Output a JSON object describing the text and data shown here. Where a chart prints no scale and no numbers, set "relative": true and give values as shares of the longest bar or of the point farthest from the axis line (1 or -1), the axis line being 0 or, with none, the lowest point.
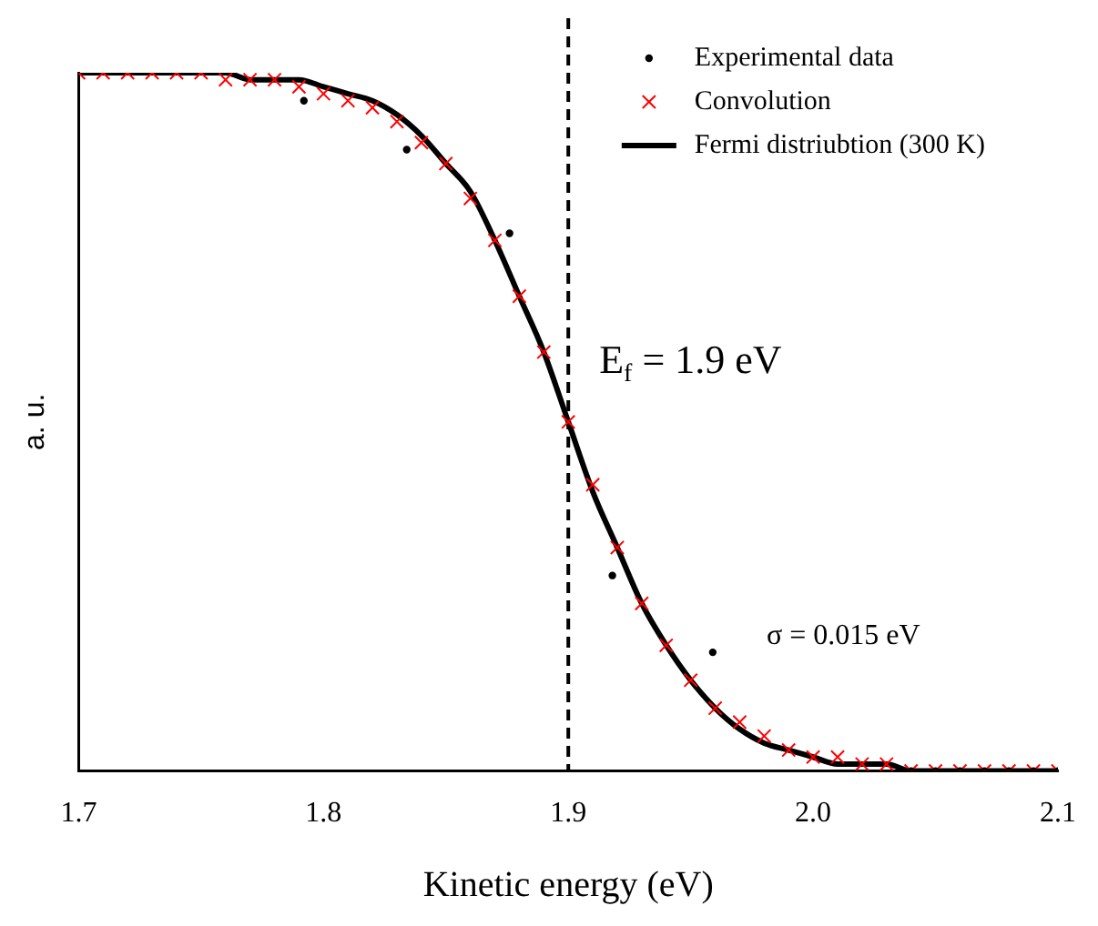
{
  "chart_data": {
    "type": "line",
    "relative": true,
    "xlabel": "Kinetic energy (eV)",
    "ylabel": "a. u.",
    "xlim": [
      1.7,
      2.1
    ],
    "xticks": [
      1.7,
      1.8,
      1.9,
      {
        "value": 2,
        "label": "2.0"
      },
      2.1
    ],
    "tick_labels": "x",
    "grid": false,
    "legend": "top right",
    "series": [
      {
        "name": "Experimental data",
        "type": "scatter",
        "marker": "circle",
        "color": "#000000",
        "x": [
          1.792,
          1.834,
          1.876,
          1.918,
          1.959,
          2.04,
          2.05,
          2.06,
          2.07,
          2.08,
          2.09,
          2.1
        ],
        "values": [
          0.96,
          0.89,
          0.77,
          0.28,
          0.17,
          0.0,
          0.0,
          0.0,
          0.0,
          0.0,
          0.0,
          0.0
        ]
      },
      {
        "name": "Convolution",
        "type": "scatter",
        "marker": "cross",
        "color": "#ff0000",
        "x": [
          1.7,
          1.71,
          1.72,
          1.73,
          1.74,
          1.75,
          1.76,
          1.77,
          1.78,
          1.79,
          1.8,
          1.81,
          1.82,
          1.83,
          1.84,
          1.85,
          1.86,
          1.87,
          1.88,
          1.89,
          1.9,
          1.91,
          1.92,
          1.93,
          1.94,
          1.95,
          1.96,
          1.97,
          1.98,
          1.99,
          2.0,
          2.01,
          2.02,
          2.03,
          2.04,
          2.05,
          2.06,
          2.07,
          2.08,
          2.09,
          2.1
        ],
        "values": [
          1.0,
          1.0,
          1.0,
          1.0,
          1.0,
          1.0,
          0.99,
          0.99,
          0.99,
          0.98,
          0.97,
          0.96,
          0.95,
          0.93,
          0.9,
          0.87,
          0.82,
          0.76,
          0.68,
          0.6,
          0.5,
          0.41,
          0.32,
          0.24,
          0.18,
          0.13,
          0.09,
          0.07,
          0.05,
          0.03,
          0.02,
          0.02,
          0.01,
          0.01,
          0.0,
          0.0,
          0.0,
          0.0,
          0.0,
          0.0,
          0.0
        ]
      },
      {
        "name": "Fermi distriubtion (300 K)",
        "marker": "none",
        "line_style": "solid",
        "color": "#000000",
        "x": [
          1.7,
          1.71,
          1.72,
          1.73,
          1.74,
          1.75,
          1.76,
          1.77,
          1.78,
          1.79,
          1.8,
          1.81,
          1.82,
          1.83,
          1.84,
          1.85,
          1.86,
          1.87,
          1.88,
          1.89,
          1.9,
          1.91,
          1.92,
          1.93,
          1.94,
          1.95,
          1.96,
          1.97,
          1.98,
          1.99,
          2.0,
          2.01,
          2.02,
          2.03,
          2.04,
          2.05,
          2.06,
          2.07,
          2.08,
          2.09,
          2.1
        ],
        "values": [
          1.0,
          1.0,
          1.0,
          1.0,
          1.0,
          1.0,
          1.0,
          0.99,
          0.99,
          0.99,
          0.98,
          0.97,
          0.96,
          0.94,
          0.91,
          0.87,
          0.83,
          0.76,
          0.68,
          0.6,
          0.5,
          0.4,
          0.32,
          0.24,
          0.18,
          0.13,
          0.09,
          0.06,
          0.04,
          0.03,
          0.02,
          0.01,
          0.01,
          0.01,
          0.0,
          0.0,
          0.0,
          0.0,
          0.0,
          0.0,
          0.0
        ]
      }
    ],
    "ref_lines": [
      {
        "axis": "x",
        "value": 1.9,
        "label": "E$_{f}$ = 1.9 eV",
        "line_style": "dashed",
        "color": "#000000"
      }
    ],
    "annotations": [
      "σ = 0.015 eV"
    ]
  }
}
